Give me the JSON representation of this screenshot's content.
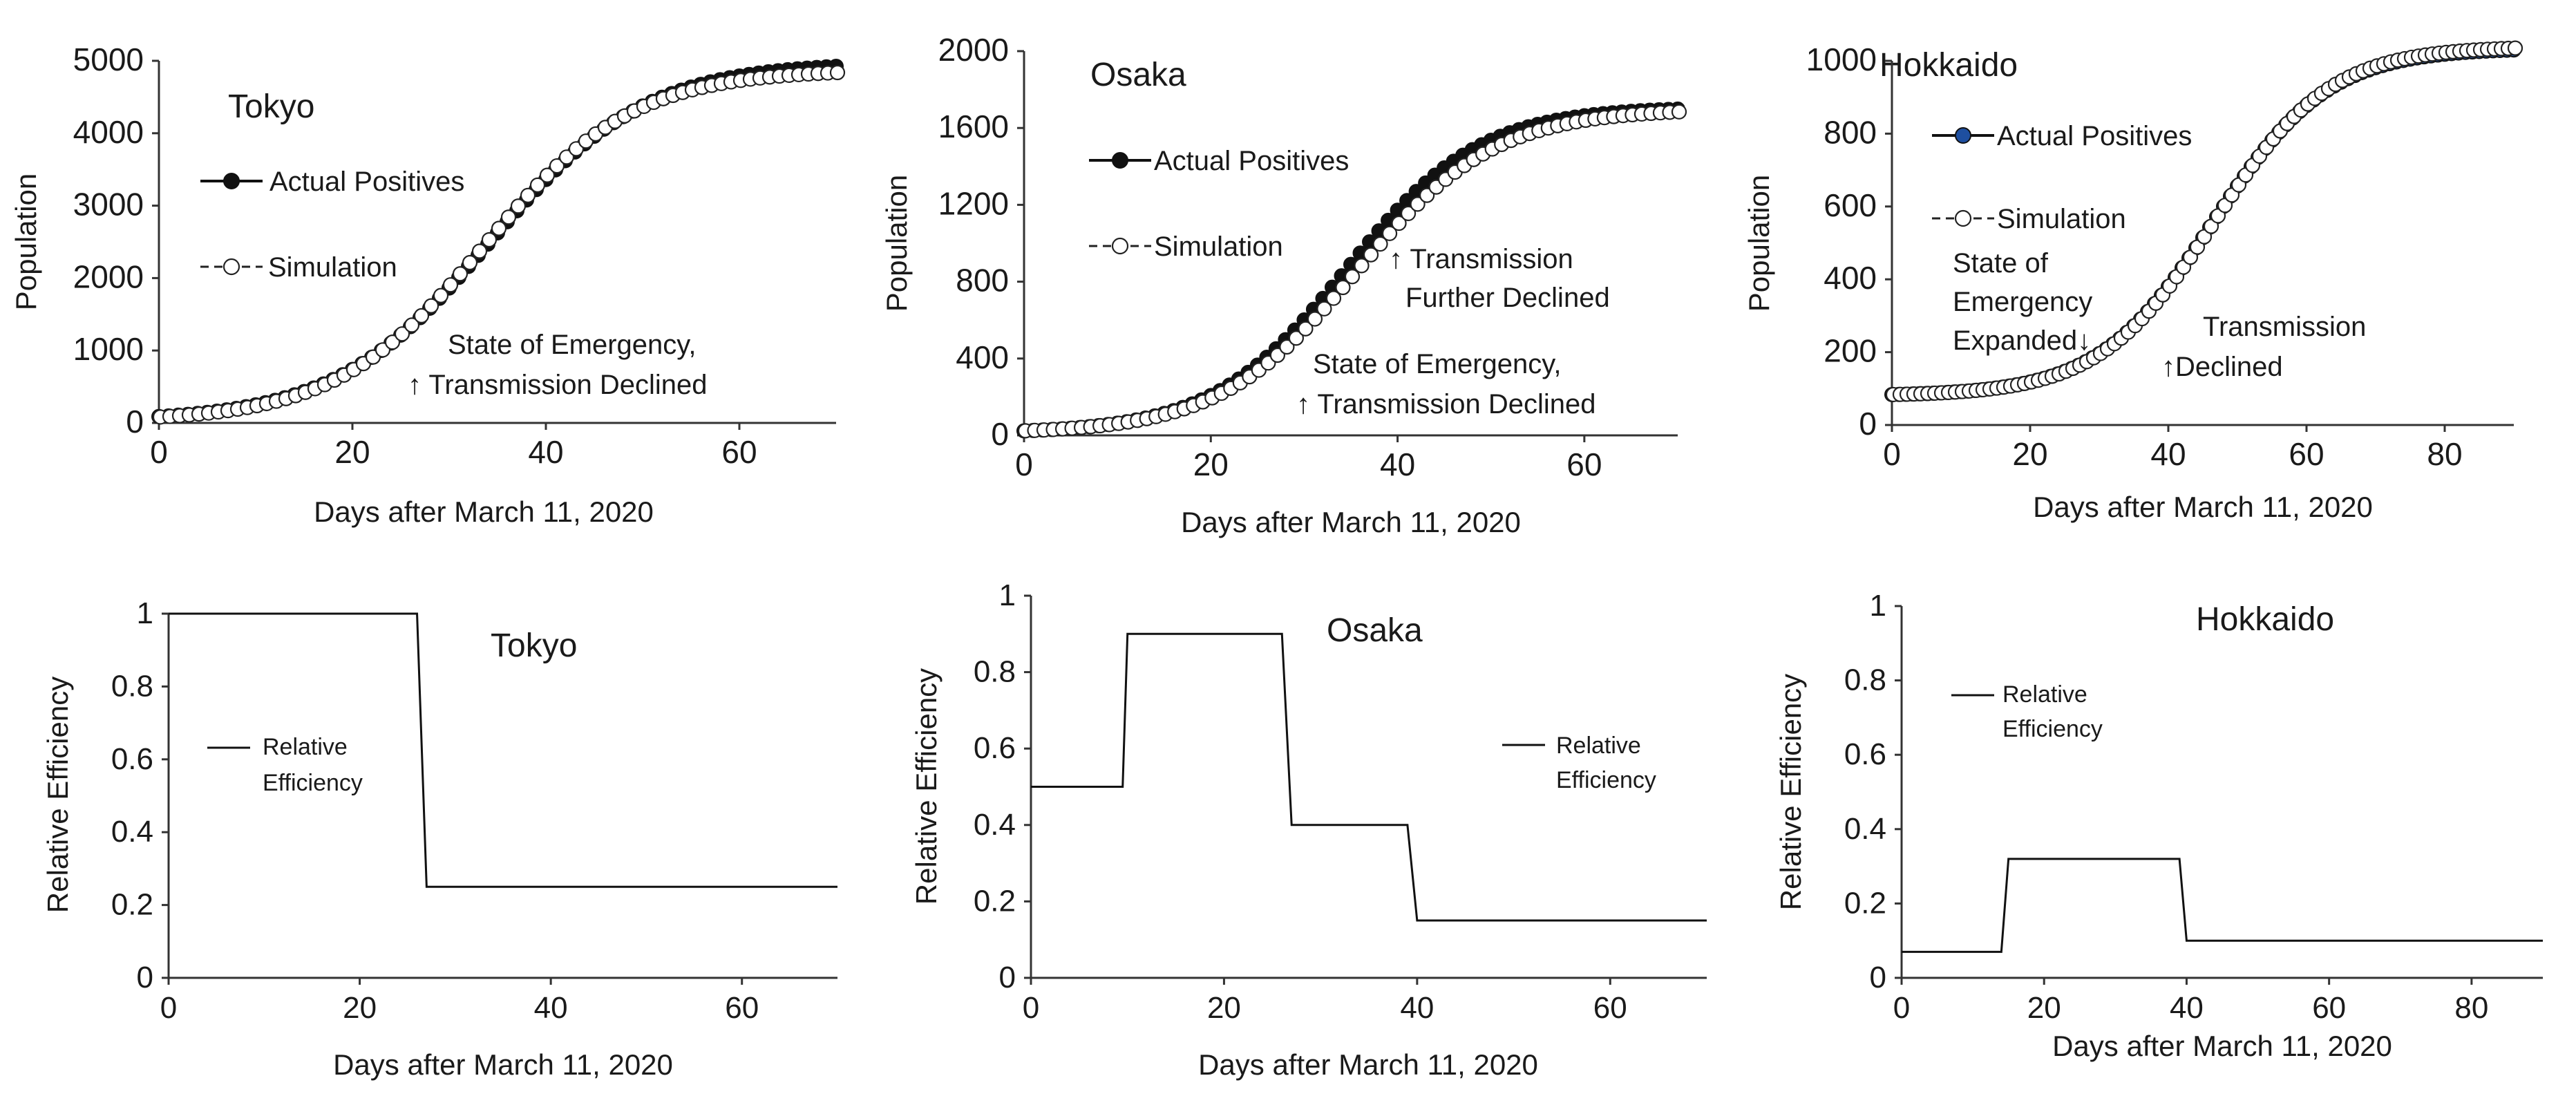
{
  "chart_data": [
    {
      "type": "line",
      "title": "Tokyo",
      "xlabel": "Days after March 11, 2020",
      "ylabel": "Population",
      "xlim": [
        0,
        70
      ],
      "ylim": [
        0,
        5000
      ],
      "xticks": [
        0,
        20,
        40,
        60
      ],
      "yticks": [
        0,
        1000,
        2000,
        3000,
        4000,
        5000
      ],
      "grid": false,
      "legend": {
        "position": "left",
        "entries": [
          "Actual Positives",
          "Simulation"
        ]
      },
      "actual_model": {
        "K": 4980,
        "r": 0.125,
        "t0": 34.2,
        "base": 20,
        "start": 0,
        "end": 70,
        "step": 1
      },
      "simulation_model": {
        "K": 4880,
        "r": 0.13,
        "t0": 33.5,
        "base": 20,
        "start": 0,
        "end": 70,
        "step": 1
      },
      "annotations": [
        "State of Emergency,",
        "↑  Transmission Declined"
      ]
    },
    {
      "type": "line",
      "title": "Osaka",
      "xlabel": "Days after March 11, 2020",
      "ylabel": "Population",
      "xlim": [
        0,
        70
      ],
      "ylim": [
        0,
        2000
      ],
      "xticks": [
        0,
        20,
        40,
        60
      ],
      "yticks": [
        0,
        400,
        800,
        1200,
        1600,
        2000
      ],
      "grid": false,
      "legend": {
        "position": "left",
        "entries": [
          "Actual Positives",
          "Simulation"
        ]
      },
      "actual_model": {
        "K": 1710,
        "r": 0.14,
        "t0": 34.5,
        "base": 10,
        "start": 0,
        "end": 70,
        "step": 1
      },
      "simulation_model": {
        "K": 1700,
        "r": 0.135,
        "t0": 35.5,
        "base": 10,
        "start": 0,
        "end": 70,
        "step": 1
      },
      "annotations": [
        "↑ Transmission",
        "Further Declined",
        "State of Emergency,",
        "↑ Transmission Declined"
      ]
    },
    {
      "type": "line",
      "title": "Hokkaido",
      "xlabel": "Days after March 11, 2020",
      "ylabel": "Population",
      "xlim": [
        0,
        90
      ],
      "ylim": [
        0,
        1000
      ],
      "xticks": [
        0,
        20,
        40,
        60,
        80
      ],
      "yticks": [
        0,
        200,
        400,
        600,
        800,
        1000
      ],
      "grid": false,
      "legend": {
        "position": "left",
        "entries": [
          "Actual Positives",
          "Simulation"
        ]
      },
      "actual_model": {
        "K": 1035,
        "r": 0.12,
        "t0": 46.5,
        "base": 80,
        "start": 0,
        "end": 90,
        "step": 1
      },
      "simulation_model": {
        "K": 1040,
        "r": 0.12,
        "t0": 46.5,
        "base": 80,
        "start": 0,
        "end": 90,
        "step": 1
      },
      "annotations": [
        "State of",
        "Emergency",
        "Expanded↓",
        "Transmission",
        "↑Declined"
      ]
    },
    {
      "type": "line",
      "title": "Tokyo",
      "xlabel": "Days after March 11, 2020",
      "ylabel": "Relative Efficiency",
      "xlim": [
        0,
        70
      ],
      "ylim": [
        0,
        1
      ],
      "xticks": [
        0,
        20,
        40,
        60
      ],
      "yticks": [
        0,
        0.2,
        0.4,
        0.6,
        0.8,
        1
      ],
      "grid": false,
      "legend": {
        "position": "left",
        "entries": [
          "Relative",
          "Efficiency"
        ]
      },
      "x": [
        0,
        26,
        27,
        70
      ],
      "y": [
        1,
        1,
        0.25,
        0.25
      ]
    },
    {
      "type": "line",
      "title": "Osaka",
      "xlabel": "Days after March 11, 2020",
      "ylabel": "Relative Efficiency",
      "xlim": [
        0,
        70
      ],
      "ylim": [
        0,
        1
      ],
      "xticks": [
        0,
        20,
        40,
        60
      ],
      "yticks": [
        0,
        0.2,
        0.4,
        0.6,
        0.8,
        1
      ],
      "grid": false,
      "legend": {
        "position": "right",
        "entries": [
          "Relative",
          "Efficiency"
        ]
      },
      "x": [
        0,
        9.5,
        10,
        26,
        27,
        39,
        40,
        70
      ],
      "y": [
        0.5,
        0.5,
        0.9,
        0.9,
        0.4,
        0.4,
        0.15,
        0.15
      ]
    },
    {
      "type": "line",
      "title": "Hokkaido",
      "xlabel": "Days after March 11, 2020",
      "ylabel": "Relative Efficiency",
      "xlim": [
        0,
        90
      ],
      "ylim": [
        0,
        1
      ],
      "xticks": [
        0,
        20,
        40,
        60,
        80
      ],
      "yticks": [
        0,
        0.2,
        0.4,
        0.6,
        0.8,
        1
      ],
      "grid": false,
      "legend": {
        "position": "left",
        "entries": [
          "Relative",
          "Efficiency"
        ]
      },
      "x": [
        0,
        14,
        15,
        39,
        40,
        90
      ],
      "y": [
        0.07,
        0.07,
        0.32,
        0.32,
        0.1,
        0.1
      ]
    }
  ]
}
